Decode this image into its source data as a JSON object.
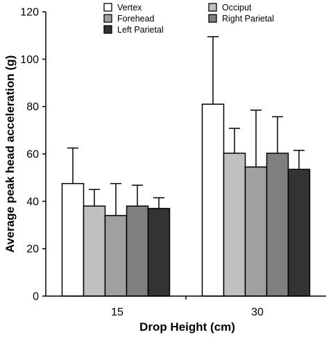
{
  "chart_data": {
    "type": "bar",
    "title": "",
    "xlabel": "Drop Height (cm)",
    "ylabel": "Average peak head acceleration (g)",
    "ylim": [
      0,
      120
    ],
    "yticks": [
      0,
      20,
      40,
      60,
      80,
      100,
      120
    ],
    "categories": [
      "15",
      "30"
    ],
    "grid": false,
    "legend_position": "top",
    "series": [
      {
        "name": "Vertex",
        "values": [
          47.5,
          81.0
        ],
        "errors": [
          15.0,
          28.5
        ],
        "color": "#ffffff"
      },
      {
        "name": "Occiput",
        "values": [
          38.0,
          60.3
        ],
        "errors": [
          7.0,
          10.5
        ],
        "color": "#c0c0c0"
      },
      {
        "name": "Forehead",
        "values": [
          34.0,
          54.5
        ],
        "errors": [
          13.5,
          24.0
        ],
        "color": "#a0a0a0"
      },
      {
        "name": "Right Parietal",
        "values": [
          38.0,
          60.3
        ],
        "errors": [
          8.8,
          15.4
        ],
        "color": "#7f7f7f"
      },
      {
        "name": "Left Parietal",
        "values": [
          37.0,
          53.5
        ],
        "errors": [
          4.5,
          8.0
        ],
        "color": "#333333"
      }
    ],
    "legend_order": [
      "Vertex",
      "Occiput",
      "Forehead",
      "Right Parietal",
      "Left Parietal"
    ]
  }
}
